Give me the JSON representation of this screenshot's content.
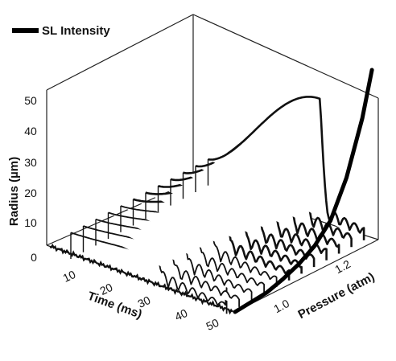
{
  "chart_data": {
    "type": "line",
    "title": "",
    "legend": {
      "label": "SL Intensity",
      "position": "top-left"
    },
    "axes": {
      "radius": {
        "label": "Radius (µm)",
        "range": [
          0,
          50
        ],
        "ticks": [
          "0",
          "10",
          "20",
          "30",
          "40",
          "50"
        ]
      },
      "time": {
        "label": "Time (ms)",
        "range": [
          0,
          50
        ],
        "ticks": [
          "10",
          "20",
          "30",
          "40",
          "50"
        ]
      },
      "pressure": {
        "label": "Pressure (atm)",
        "range": [
          0.9,
          1.35
        ],
        "ticks": [
          "1.0",
          "1.2"
        ]
      }
    },
    "grid": false,
    "series": [
      {
        "pressure": 0.98,
        "max_radius_um": 12
      },
      {
        "pressure": 1.0,
        "max_radius_um": 13
      },
      {
        "pressure": 1.02,
        "max_radius_um": 14
      },
      {
        "pressure": 1.04,
        "max_radius_um": 15
      },
      {
        "pressure": 1.06,
        "max_radius_um": 16
      },
      {
        "pressure": 1.08,
        "max_radius_um": 20
      },
      {
        "pressure": 1.1,
        "max_radius_um": 24
      },
      {
        "pressure": 1.12,
        "max_radius_um": 28
      },
      {
        "pressure": 1.14,
        "max_radius_um": 32
      },
      {
        "pressure": 1.16,
        "max_radius_um": 37
      },
      {
        "pressure": 1.18,
        "max_radius_um": 42
      },
      {
        "pressure": 1.2,
        "max_radius_um": 48
      }
    ],
    "sl_intensity": {
      "pressure": [
        0.9,
        0.95,
        1.0,
        1.05,
        1.1,
        1.15,
        1.2,
        1.25,
        1.3,
        1.33
      ],
      "relative": [
        0.0,
        0.01,
        0.02,
        0.05,
        0.09,
        0.15,
        0.25,
        0.45,
        0.75,
        1.0
      ]
    }
  }
}
